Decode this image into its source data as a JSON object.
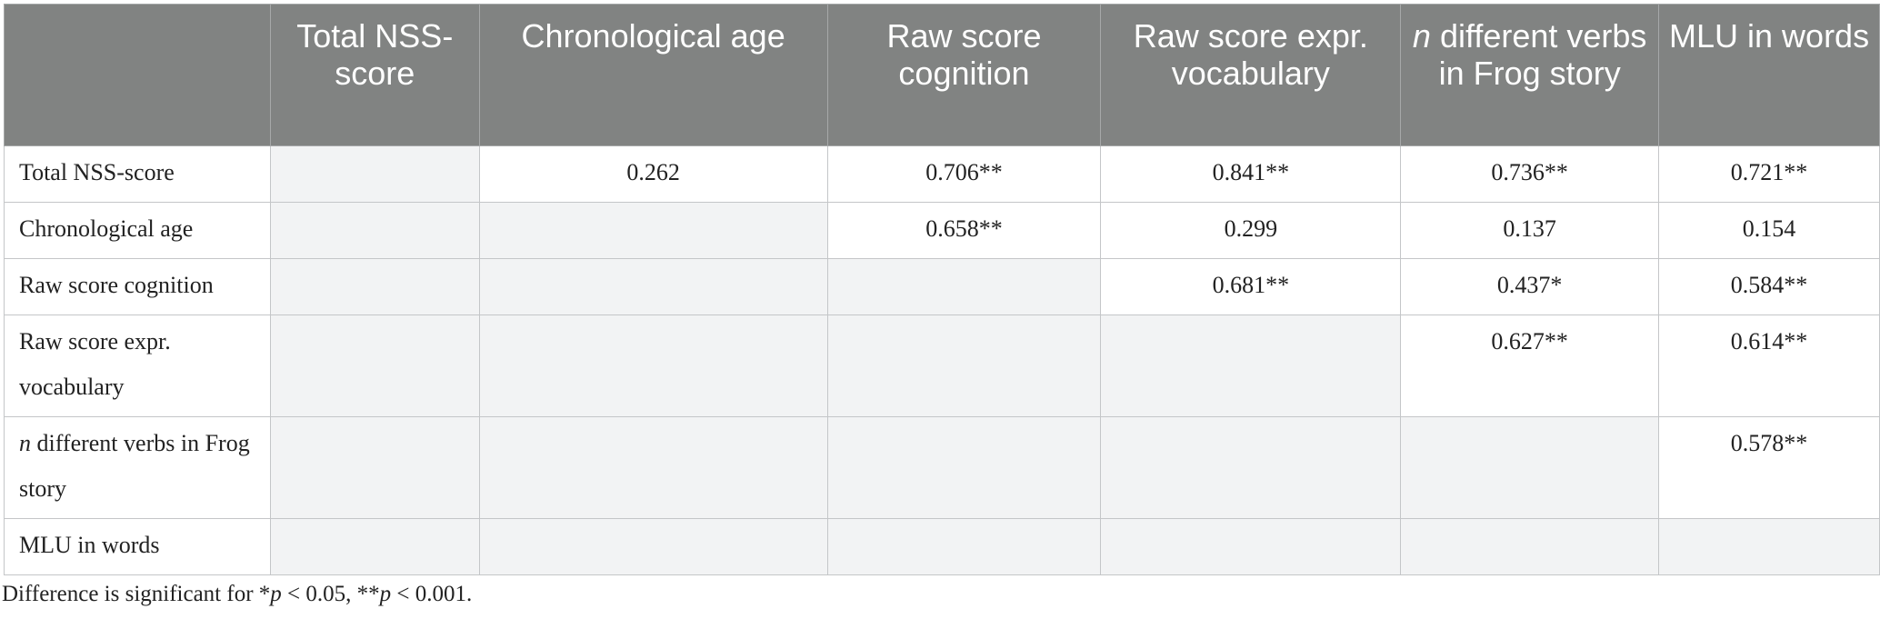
{
  "header": {
    "blank": "",
    "col1": "Total NSS-score",
    "col2": "Chronological age",
    "col3": "Raw score cognition",
    "col4": "Raw score expr. vocabulary",
    "col5_italic": "n",
    "col5_rest": " different verbs in Frog story",
    "col6": "MLU in words"
  },
  "rows": [
    {
      "label": "Total NSS-score",
      "c2": "0.262",
      "c3": "0.706**",
      "c4": "0.841**",
      "c5": "0.736**",
      "c6": "0.721**"
    },
    {
      "label": "Chronological age",
      "c3": "0.658**",
      "c4": "0.299",
      "c5": "0.137",
      "c6": "0.154"
    },
    {
      "label": "Raw score cognition",
      "c4": "0.681**",
      "c5": "0.437*",
      "c6": "0.584**"
    },
    {
      "label": "Raw score expr. vocabulary",
      "c5": "0.627**",
      "c6": "0.614**"
    },
    {
      "label_italic": "n",
      "label_rest": " different verbs in Frog story",
      "c6": "0.578**"
    },
    {
      "label": "MLU in words"
    }
  ],
  "note": {
    "prefix": "Difference is significant for *",
    "p1": "p",
    "mid": " < 0.05, **",
    "p2": "p",
    "suffix": " < 0.001."
  }
}
